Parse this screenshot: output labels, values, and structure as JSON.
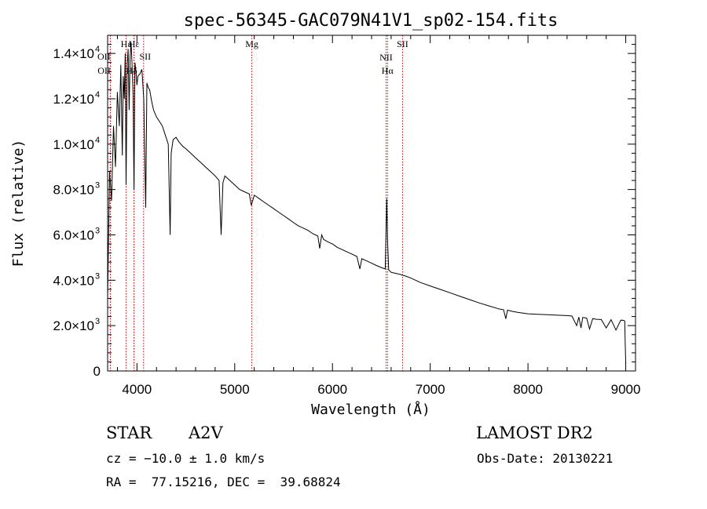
{
  "chart_data": {
    "type": "line",
    "title": "spec-56345-GAC079N41V1_sp02-154.fits",
    "xlabel": "Wavelength (Å)",
    "ylabel": "Flux (relative)",
    "xlim": [
      3700,
      9100
    ],
    "ylim": [
      0,
      14800
    ],
    "x_ticks": [
      4000,
      5000,
      6000,
      7000,
      8000,
      9000
    ],
    "y_ticks": [
      {
        "value": 0,
        "mantissa": "0",
        "exp": ""
      },
      {
        "value": 2000,
        "mantissa": "2.0×10",
        "exp": "3"
      },
      {
        "value": 4000,
        "mantissa": "4.0×10",
        "exp": "3"
      },
      {
        "value": 6000,
        "mantissa": "6.0×10",
        "exp": "3"
      },
      {
        "value": 8000,
        "mantissa": "8.0×10",
        "exp": "3"
      },
      {
        "value": 10000,
        "mantissa": "1.0×10",
        "exp": "4"
      },
      {
        "value": 12000,
        "mantissa": "1.2×10",
        "exp": "4"
      },
      {
        "value": 14000,
        "mantissa": "1.4×10",
        "exp": "4"
      }
    ],
    "series": [
      {
        "name": "spectrum",
        "x": [
          3700,
          3720,
          3740,
          3760,
          3780,
          3800,
          3820,
          3835,
          3850,
          3860,
          3870,
          3880,
          3889,
          3900,
          3910,
          3920,
          3930,
          3940,
          3950,
          3960,
          3970,
          3980,
          3990,
          4000,
          4010,
          4030,
          4050,
          4070,
          4090,
          4102,
          4115,
          4130,
          4150,
          4170,
          4200,
          4230,
          4260,
          4290,
          4320,
          4340,
          4350,
          4370,
          4400,
          4430,
          4470,
          4500,
          4550,
          4600,
          4650,
          4700,
          4750,
          4800,
          4840,
          4861,
          4880,
          4900,
          4950,
          5000,
          5050,
          5100,
          5150,
          5170,
          5200,
          5250,
          5300,
          5350,
          5400,
          5450,
          5500,
          5550,
          5600,
          5650,
          5700,
          5750,
          5800,
          5850,
          5870,
          5890,
          5910,
          5950,
          6000,
          6050,
          6100,
          6150,
          6200,
          6250,
          6280,
          6300,
          6350,
          6400,
          6450,
          6500,
          6540,
          6555,
          6563,
          6575,
          6590,
          6600,
          6650,
          6700,
          6750,
          6800,
          6900,
          7000,
          7100,
          7200,
          7300,
          7400,
          7500,
          7600,
          7700,
          7750,
          7773,
          7790,
          7850,
          7900,
          8000,
          8100,
          8200,
          8300,
          8400,
          8450,
          8498,
          8520,
          8542,
          8560,
          8600,
          8630,
          8662,
          8700,
          8750,
          8800,
          8850,
          8900,
          8950,
          8980,
          8990,
          8995,
          9000
        ],
        "y": [
          3200,
          8800,
          7500,
          10800,
          9000,
          12300,
          10800,
          13500,
          9500,
          13000,
          12000,
          14000,
          8200,
          13500,
          14200,
          11500,
          13800,
          14500,
          13500,
          12200,
          8000,
          13600,
          13200,
          12600,
          13000,
          13100,
          13300,
          12000,
          7200,
          12700,
          12500,
          12400,
          11900,
          11500,
          11200,
          11000,
          10800,
          10400,
          10000,
          6000,
          9600,
          10200,
          10300,
          10100,
          9900,
          9800,
          9600,
          9400,
          9200,
          9000,
          8800,
          8600,
          8400,
          6000,
          8300,
          8600,
          8400,
          8200,
          8000,
          7900,
          7800,
          7300,
          7750,
          7600,
          7450,
          7300,
          7150,
          7000,
          6850,
          6700,
          6550,
          6400,
          6300,
          6200,
          6050,
          5950,
          5400,
          6000,
          5800,
          5700,
          5600,
          5450,
          5350,
          5250,
          5150,
          5050,
          4500,
          4950,
          4850,
          4750,
          4650,
          4560,
          4500,
          7600,
          5800,
          4450,
          4400,
          4350,
          4300,
          4250,
          4180,
          4100,
          3900,
          3750,
          3600,
          3450,
          3300,
          3150,
          3000,
          2870,
          2740,
          2700,
          2300,
          2680,
          2620,
          2580,
          2520,
          2500,
          2480,
          2460,
          2440,
          2420,
          2000,
          2380,
          1900,
          2360,
          2330,
          1850,
          2310,
          2280,
          2270,
          1900,
          2260,
          1800,
          2240,
          2230,
          2200,
          1200,
          300
        ]
      }
    ],
    "emission_lines": [
      {
        "name": "OII",
        "wavelength": 3727
      },
      {
        "name": "OII",
        "wavelength": 3729
      },
      {
        "name": "Hε",
        "wavelength": 3889
      },
      {
        "name": "Hε",
        "wavelength": 3970
      },
      {
        "name": "Hδ",
        "wavelength": 3970
      },
      {
        "name": "SII",
        "wavelength": 4068
      },
      {
        "name": "Mg",
        "wavelength": 5175
      },
      {
        "name": "NII",
        "wavelength": 6548
      },
      {
        "name": "Hα",
        "wavelength": 6563
      },
      {
        "name": "SII",
        "wavelength": 6717
      }
    ]
  },
  "info": {
    "class_label": "STAR",
    "subclass": "A2V",
    "survey": "LAMOST DR2",
    "cz": "cz = −10.0 ± 1.0 km/s",
    "obs_date": "Obs-Date: 20130221",
    "coords": "RA =  77.15216, DEC =  39.68824"
  },
  "colors": {
    "line": "#000000",
    "marker_line": "#cc0000",
    "axes": "#000000"
  }
}
